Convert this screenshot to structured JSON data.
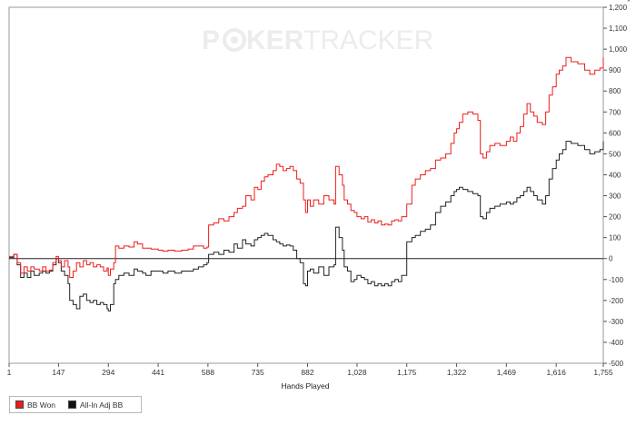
{
  "watermark": {
    "left": "P",
    "mid": "KER",
    "right": "TRACKER"
  },
  "chart_data": {
    "type": "line",
    "title": "",
    "xlabel": "Hands Played",
    "ylabel": "",
    "y_axis_side": "right",
    "xlim": [
      1,
      1755
    ],
    "ylim": [
      -500,
      1200
    ],
    "x_ticks": [
      1,
      147,
      294,
      441,
      588,
      735,
      882,
      1028,
      1175,
      1322,
      1469,
      1616,
      1755
    ],
    "x_tick_labels": [
      "1",
      "147",
      "294",
      "441",
      "588",
      "735",
      "882",
      "1,028",
      "1,175",
      "1,322",
      "1,469",
      "1,616",
      "1,755"
    ],
    "y_ticks": [
      -500,
      -400,
      -300,
      -200,
      -100,
      0,
      100,
      200,
      300,
      400,
      500,
      600,
      700,
      800,
      900,
      1000,
      1100,
      1200
    ],
    "y_tick_labels": [
      "-500",
      "-400",
      "-300",
      "-200",
      "-100",
      "0",
      "100",
      "200",
      "300",
      "400",
      "500",
      "600",
      "700",
      "800",
      "900",
      "1,000",
      "1,100",
      "1,200"
    ],
    "grid": false,
    "legend_position": "bottom-left",
    "series": [
      {
        "name": "BB Won",
        "color": "#ee1c1c",
        "points": [
          [
            1,
            10
          ],
          [
            15,
            20
          ],
          [
            25,
            -20
          ],
          [
            35,
            -70
          ],
          [
            45,
            -40
          ],
          [
            55,
            -60
          ],
          [
            65,
            -40
          ],
          [
            75,
            -50
          ],
          [
            90,
            -60
          ],
          [
            100,
            -40
          ],
          [
            110,
            -60
          ],
          [
            120,
            -55
          ],
          [
            130,
            -20
          ],
          [
            140,
            10
          ],
          [
            147,
            -10
          ],
          [
            155,
            -40
          ],
          [
            165,
            -10
          ],
          [
            175,
            -40
          ],
          [
            180,
            -90
          ],
          [
            190,
            -60
          ],
          [
            200,
            -20
          ],
          [
            210,
            -40
          ],
          [
            220,
            -10
          ],
          [
            230,
            -30
          ],
          [
            240,
            -20
          ],
          [
            250,
            -40
          ],
          [
            260,
            -30
          ],
          [
            270,
            -40
          ],
          [
            280,
            -60
          ],
          [
            290,
            -45
          ],
          [
            294,
            -80
          ],
          [
            300,
            -50
          ],
          [
            310,
            -20
          ],
          [
            315,
            60
          ],
          [
            325,
            50
          ],
          [
            340,
            60
          ],
          [
            355,
            55
          ],
          [
            370,
            80
          ],
          [
            380,
            70
          ],
          [
            395,
            50
          ],
          [
            405,
            50
          ],
          [
            420,
            45
          ],
          [
            441,
            40
          ],
          [
            455,
            35
          ],
          [
            470,
            40
          ],
          [
            490,
            35
          ],
          [
            510,
            40
          ],
          [
            530,
            45
          ],
          [
            545,
            60
          ],
          [
            560,
            60
          ],
          [
            575,
            50
          ],
          [
            585,
            55
          ],
          [
            590,
            160
          ],
          [
            605,
            170
          ],
          [
            620,
            190
          ],
          [
            635,
            180
          ],
          [
            650,
            200
          ],
          [
            665,
            220
          ],
          [
            675,
            240
          ],
          [
            690,
            250
          ],
          [
            700,
            300
          ],
          [
            715,
            280
          ],
          [
            725,
            340
          ],
          [
            735,
            330
          ],
          [
            745,
            370
          ],
          [
            755,
            390
          ],
          [
            765,
            400
          ],
          [
            780,
            420
          ],
          [
            790,
            450
          ],
          [
            800,
            440
          ],
          [
            810,
            420
          ],
          [
            820,
            430
          ],
          [
            830,
            440
          ],
          [
            840,
            420
          ],
          [
            850,
            380
          ],
          [
            860,
            360
          ],
          [
            870,
            280
          ],
          [
            876,
            220
          ],
          [
            882,
            280
          ],
          [
            890,
            250
          ],
          [
            900,
            280
          ],
          [
            915,
            260
          ],
          [
            930,
            300
          ],
          [
            945,
            280
          ],
          [
            960,
            260
          ],
          [
            965,
            440
          ],
          [
            975,
            400
          ],
          [
            985,
            350
          ],
          [
            990,
            280
          ],
          [
            1000,
            260
          ],
          [
            1010,
            230
          ],
          [
            1020,
            220
          ],
          [
            1028,
            200
          ],
          [
            1040,
            190
          ],
          [
            1050,
            200
          ],
          [
            1060,
            175
          ],
          [
            1070,
            185
          ],
          [
            1080,
            170
          ],
          [
            1090,
            180
          ],
          [
            1100,
            160
          ],
          [
            1110,
            165
          ],
          [
            1120,
            160
          ],
          [
            1130,
            180
          ],
          [
            1140,
            185
          ],
          [
            1150,
            180
          ],
          [
            1160,
            200
          ],
          [
            1175,
            260
          ],
          [
            1190,
            350
          ],
          [
            1200,
            380
          ],
          [
            1215,
            400
          ],
          [
            1230,
            420
          ],
          [
            1245,
            430
          ],
          [
            1260,
            470
          ],
          [
            1275,
            480
          ],
          [
            1290,
            500
          ],
          [
            1305,
            550
          ],
          [
            1315,
            600
          ],
          [
            1322,
            620
          ],
          [
            1330,
            650
          ],
          [
            1340,
            690
          ],
          [
            1355,
            700
          ],
          [
            1370,
            690
          ],
          [
            1385,
            660
          ],
          [
            1392,
            500
          ],
          [
            1400,
            480
          ],
          [
            1410,
            510
          ],
          [
            1420,
            540
          ],
          [
            1435,
            550
          ],
          [
            1450,
            540
          ],
          [
            1469,
            560
          ],
          [
            1480,
            580
          ],
          [
            1490,
            560
          ],
          [
            1500,
            600
          ],
          [
            1510,
            630
          ],
          [
            1520,
            690
          ],
          [
            1530,
            740
          ],
          [
            1540,
            700
          ],
          [
            1550,
            680
          ],
          [
            1560,
            650
          ],
          [
            1575,
            640
          ],
          [
            1585,
            700
          ],
          [
            1595,
            780
          ],
          [
            1605,
            820
          ],
          [
            1616,
            880
          ],
          [
            1625,
            900
          ],
          [
            1635,
            920
          ],
          [
            1645,
            960
          ],
          [
            1660,
            940
          ],
          [
            1680,
            930
          ],
          [
            1700,
            900
          ],
          [
            1715,
            880
          ],
          [
            1730,
            900
          ],
          [
            1745,
            910
          ],
          [
            1755,
            960
          ]
        ]
      },
      {
        "name": "All-In Adj BB",
        "color": "#222222",
        "points": [
          [
            1,
            5
          ],
          [
            15,
            20
          ],
          [
            25,
            -30
          ],
          [
            35,
            -90
          ],
          [
            45,
            -70
          ],
          [
            55,
            -90
          ],
          [
            65,
            -60
          ],
          [
            75,
            -80
          ],
          [
            90,
            -70
          ],
          [
            100,
            -60
          ],
          [
            110,
            -70
          ],
          [
            120,
            -60
          ],
          [
            130,
            -30
          ],
          [
            140,
            0
          ],
          [
            147,
            -20
          ],
          [
            155,
            -60
          ],
          [
            165,
            -80
          ],
          [
            175,
            -120
          ],
          [
            180,
            -200
          ],
          [
            190,
            -220
          ],
          [
            200,
            -240
          ],
          [
            210,
            -180
          ],
          [
            220,
            -170
          ],
          [
            230,
            -200
          ],
          [
            240,
            -210
          ],
          [
            250,
            -200
          ],
          [
            260,
            -220
          ],
          [
            270,
            -210
          ],
          [
            280,
            -220
          ],
          [
            290,
            -240
          ],
          [
            294,
            -250
          ],
          [
            300,
            -220
          ],
          [
            310,
            -120
          ],
          [
            315,
            -100
          ],
          [
            325,
            -80
          ],
          [
            340,
            -70
          ],
          [
            355,
            -80
          ],
          [
            370,
            -50
          ],
          [
            380,
            -60
          ],
          [
            395,
            -70
          ],
          [
            405,
            -80
          ],
          [
            420,
            -60
          ],
          [
            441,
            -60
          ],
          [
            455,
            -70
          ],
          [
            470,
            -60
          ],
          [
            490,
            -70
          ],
          [
            510,
            -60
          ],
          [
            530,
            -60
          ],
          [
            545,
            -50
          ],
          [
            560,
            -40
          ],
          [
            575,
            -30
          ],
          [
            585,
            -20
          ],
          [
            590,
            20
          ],
          [
            605,
            30
          ],
          [
            620,
            20
          ],
          [
            635,
            40
          ],
          [
            650,
            30
          ],
          [
            665,
            70
          ],
          [
            675,
            50
          ],
          [
            690,
            90
          ],
          [
            700,
            70
          ],
          [
            715,
            60
          ],
          [
            725,
            90
          ],
          [
            735,
            100
          ],
          [
            745,
            110
          ],
          [
            755,
            120
          ],
          [
            765,
            110
          ],
          [
            780,
            90
          ],
          [
            790,
            80
          ],
          [
            800,
            70
          ],
          [
            810,
            60
          ],
          [
            820,
            65
          ],
          [
            830,
            60
          ],
          [
            840,
            40
          ],
          [
            850,
            0
          ],
          [
            860,
            -20
          ],
          [
            870,
            -120
          ],
          [
            876,
            -130
          ],
          [
            882,
            -60
          ],
          [
            890,
            -50
          ],
          [
            900,
            -70
          ],
          [
            915,
            -40
          ],
          [
            930,
            -80
          ],
          [
            945,
            -40
          ],
          [
            960,
            -30
          ],
          [
            965,
            150
          ],
          [
            975,
            100
          ],
          [
            985,
            40
          ],
          [
            990,
            -40
          ],
          [
            1000,
            -60
          ],
          [
            1010,
            -110
          ],
          [
            1020,
            -100
          ],
          [
            1028,
            -80
          ],
          [
            1040,
            -90
          ],
          [
            1050,
            -100
          ],
          [
            1060,
            -120
          ],
          [
            1070,
            -110
          ],
          [
            1080,
            -130
          ],
          [
            1090,
            -120
          ],
          [
            1100,
            -130
          ],
          [
            1110,
            -120
          ],
          [
            1120,
            -130
          ],
          [
            1130,
            -110
          ],
          [
            1140,
            -100
          ],
          [
            1150,
            -110
          ],
          [
            1160,
            -80
          ],
          [
            1175,
            80
          ],
          [
            1190,
            100
          ],
          [
            1200,
            110
          ],
          [
            1215,
            130
          ],
          [
            1230,
            140
          ],
          [
            1245,
            160
          ],
          [
            1260,
            220
          ],
          [
            1275,
            250
          ],
          [
            1290,
            270
          ],
          [
            1305,
            300
          ],
          [
            1315,
            320
          ],
          [
            1322,
            330
          ],
          [
            1330,
            340
          ],
          [
            1340,
            330
          ],
          [
            1355,
            320
          ],
          [
            1370,
            310
          ],
          [
            1385,
            300
          ],
          [
            1392,
            200
          ],
          [
            1400,
            190
          ],
          [
            1410,
            220
          ],
          [
            1420,
            240
          ],
          [
            1435,
            250
          ],
          [
            1450,
            260
          ],
          [
            1469,
            270
          ],
          [
            1480,
            260
          ],
          [
            1490,
            270
          ],
          [
            1500,
            290
          ],
          [
            1510,
            300
          ],
          [
            1520,
            320
          ],
          [
            1530,
            340
          ],
          [
            1540,
            320
          ],
          [
            1550,
            300
          ],
          [
            1560,
            280
          ],
          [
            1575,
            260
          ],
          [
            1585,
            300
          ],
          [
            1595,
            380
          ],
          [
            1605,
            430
          ],
          [
            1616,
            470
          ],
          [
            1625,
            500
          ],
          [
            1635,
            520
          ],
          [
            1645,
            560
          ],
          [
            1660,
            550
          ],
          [
            1680,
            540
          ],
          [
            1700,
            520
          ],
          [
            1715,
            500
          ],
          [
            1730,
            510
          ],
          [
            1745,
            520
          ],
          [
            1755,
            560
          ]
        ]
      }
    ]
  }
}
